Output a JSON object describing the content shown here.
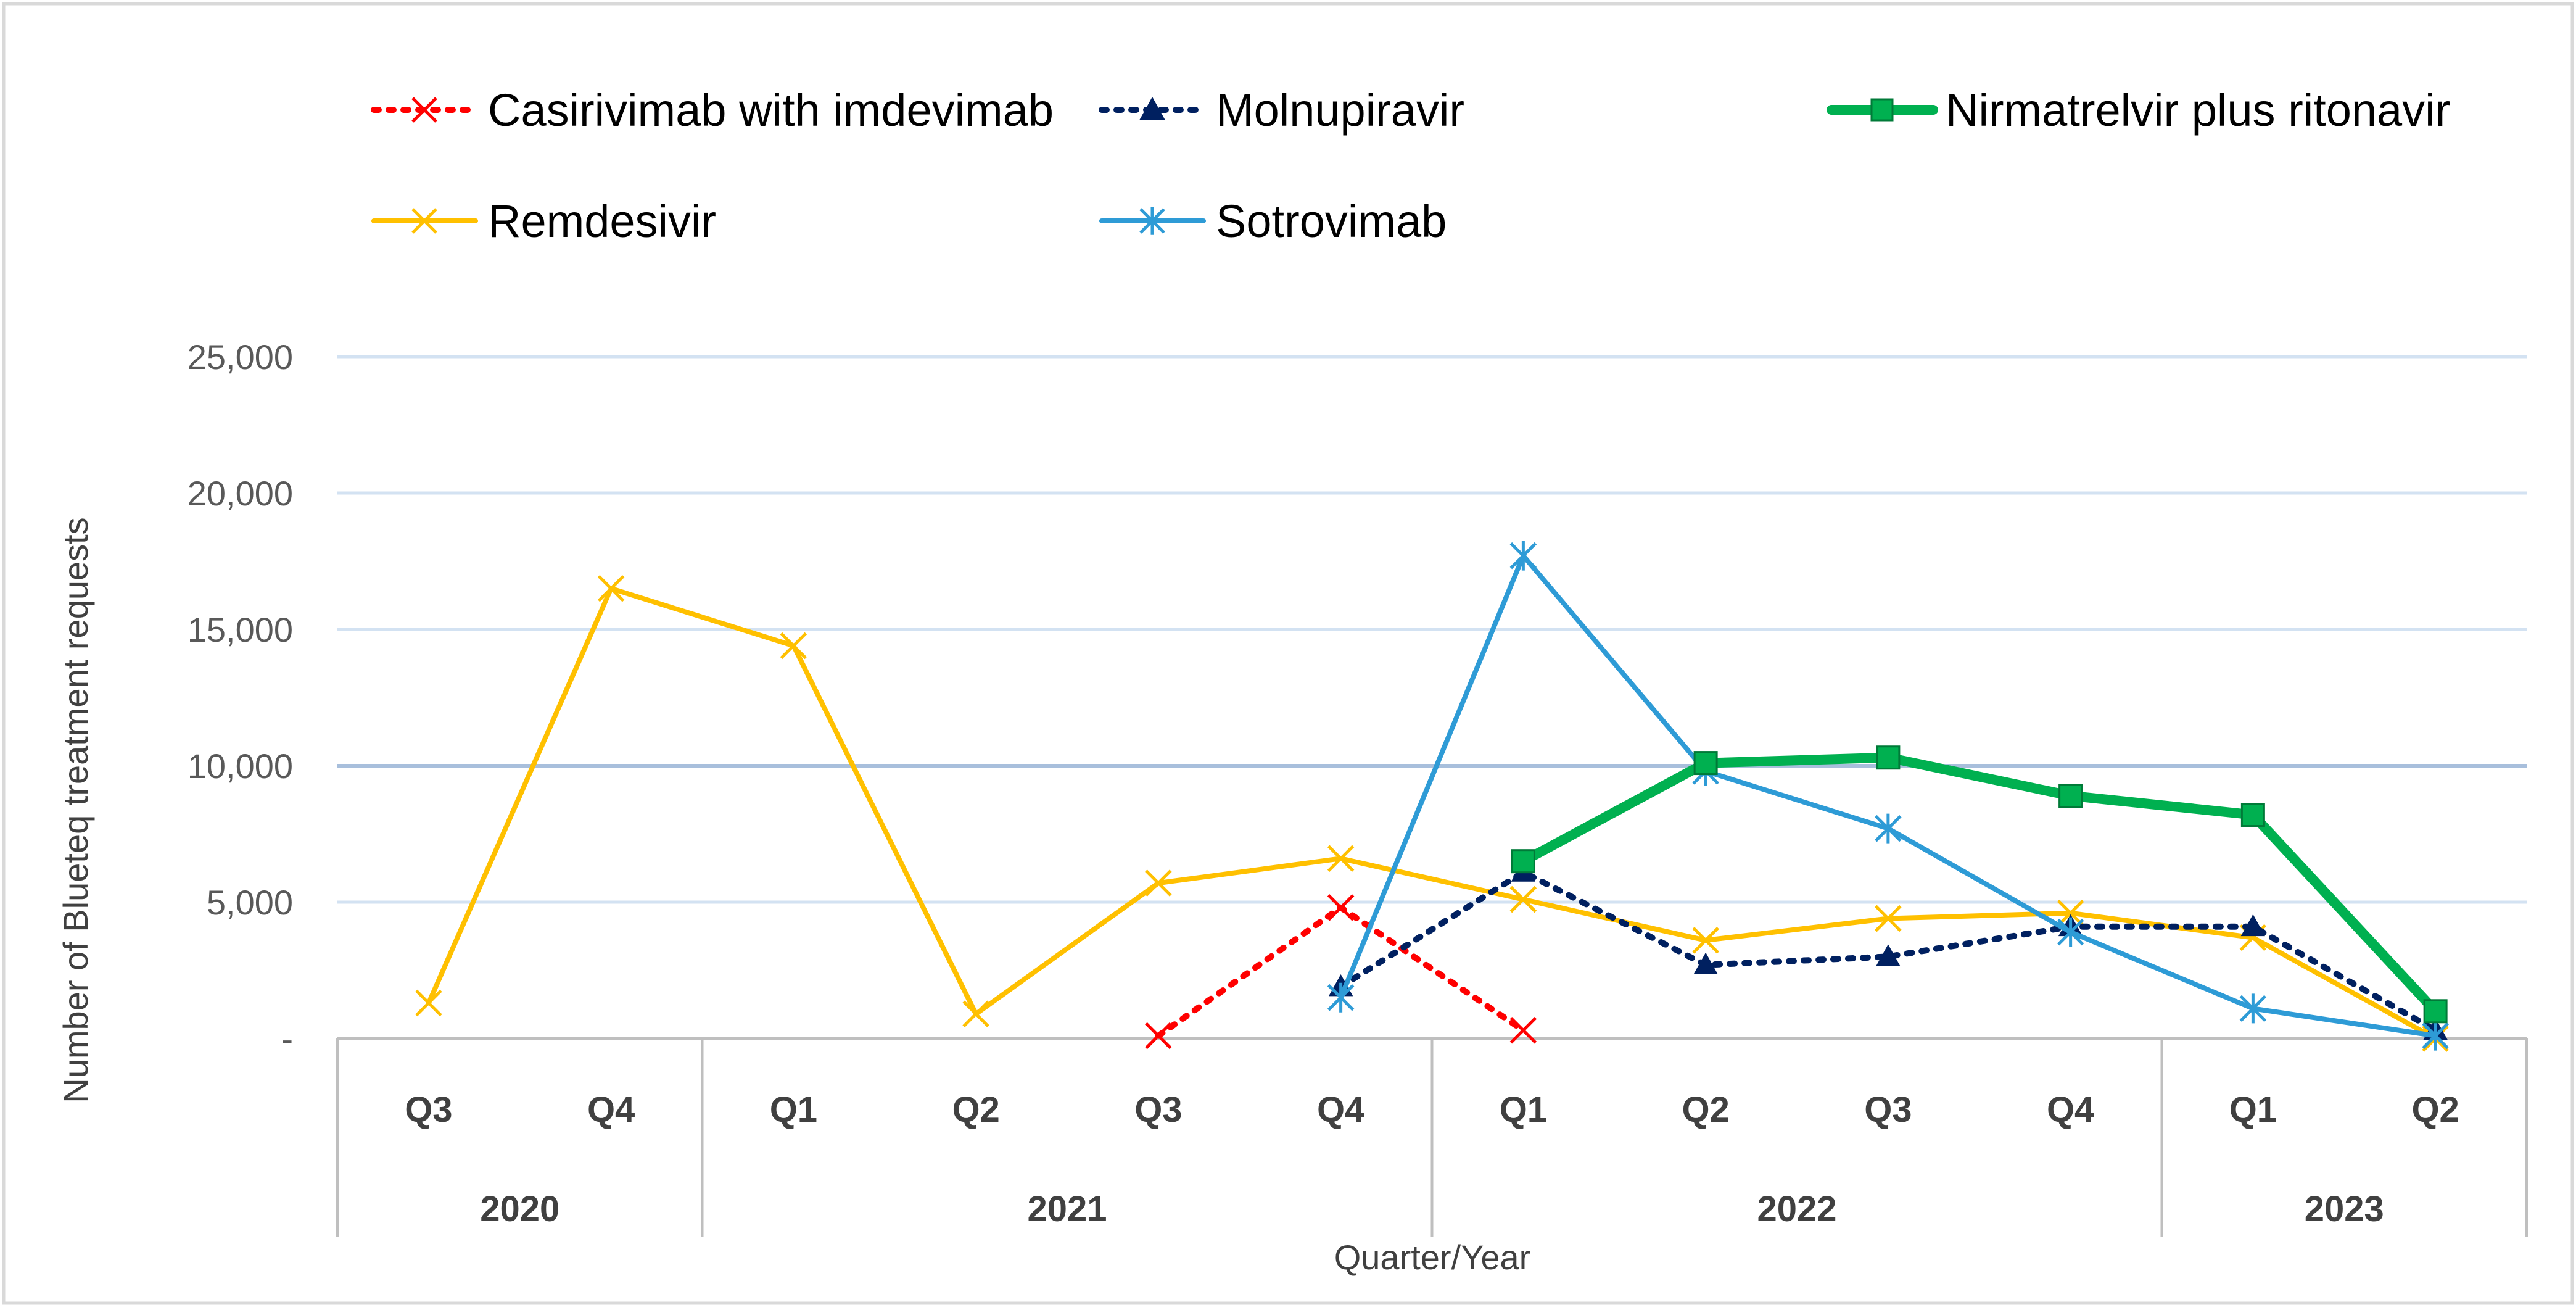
{
  "chart_data": {
    "type": "line",
    "xlabel": "Quarter/Year",
    "ylabel": "Number of Blueteq treatment requests",
    "yticks": [
      "-",
      "5,000",
      "10,000",
      "15,000",
      "20,000",
      "25,000"
    ],
    "ylim": [
      0,
      25000
    ],
    "grid": true,
    "legend_position": "top",
    "categories": [
      "Q3",
      "Q4",
      "Q1",
      "Q2",
      "Q3",
      "Q4",
      "Q1",
      "Q2",
      "Q3",
      "Q4",
      "Q1",
      "Q2"
    ],
    "year_groups": [
      {
        "label": "2020",
        "count": 2
      },
      {
        "label": "2021",
        "count": 4
      },
      {
        "label": "2022",
        "count": 4
      },
      {
        "label": "2023",
        "count": 2
      }
    ],
    "series": [
      {
        "name": "Casirivimab with imdevimab",
        "color": "#FF0000",
        "style": "dotted",
        "marker": "x",
        "values": [
          null,
          null,
          null,
          null,
          100,
          4800,
          300,
          null,
          null,
          null,
          null,
          null
        ]
      },
      {
        "name": "Molnupiravir",
        "color": "#002060",
        "style": "dotted",
        "marker": "triangle",
        "values": [
          null,
          null,
          null,
          null,
          null,
          1900,
          6100,
          2700,
          3000,
          4100,
          4100,
          300
        ]
      },
      {
        "name": "Nirmatrelvir plus ritonavir",
        "color": "#00B050",
        "style": "solid-thick",
        "marker": "square",
        "values": [
          null,
          null,
          null,
          null,
          null,
          null,
          6500,
          10100,
          10300,
          8900,
          8200,
          1000
        ]
      },
      {
        "name": "Remdesivir",
        "color": "#FFC000",
        "style": "solid",
        "marker": "x",
        "values": [
          1300,
          16500,
          14400,
          900,
          5700,
          6600,
          5100,
          3600,
          4400,
          4600,
          3700,
          0
        ]
      },
      {
        "name": "Sotrovimab",
        "color": "#2E9BD6",
        "style": "solid",
        "marker": "asterisk",
        "values": [
          null,
          null,
          null,
          null,
          null,
          1500,
          17700,
          9800,
          7700,
          3900,
          1100,
          100
        ]
      }
    ]
  }
}
